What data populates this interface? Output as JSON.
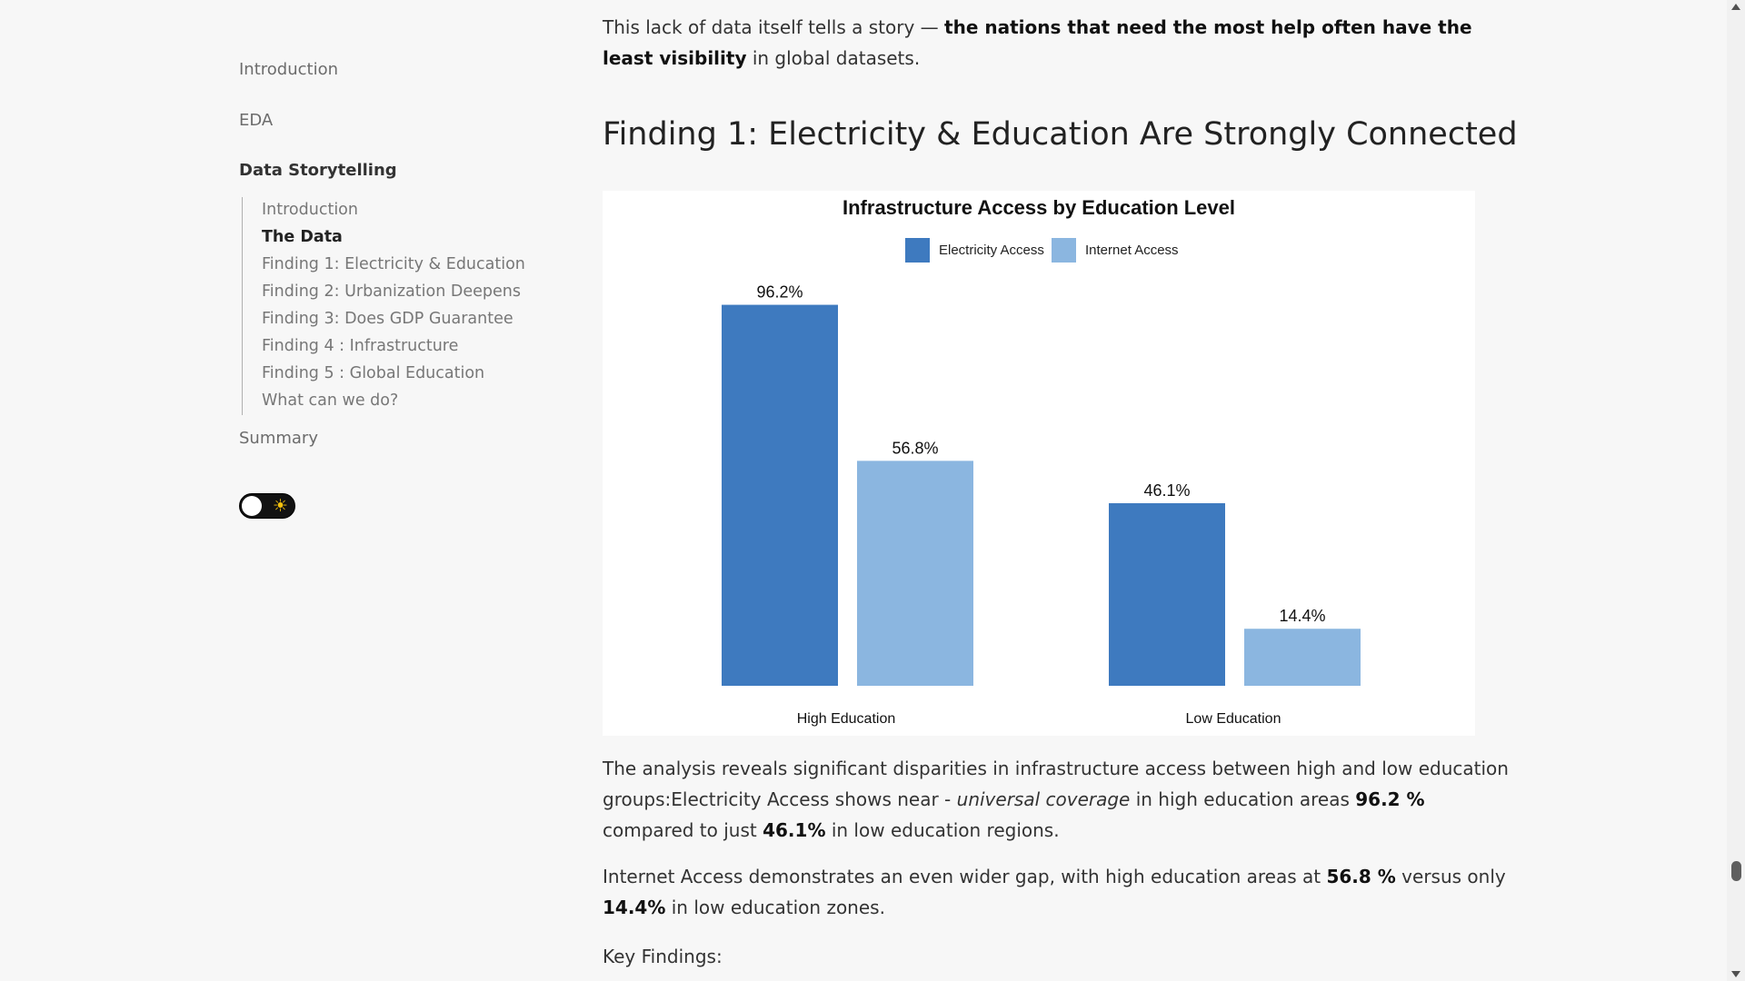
{
  "toc": {
    "items": [
      {
        "label": "Introduction"
      },
      {
        "label": "EDA"
      },
      {
        "label": "Data Storytelling"
      },
      {
        "label": "Summary"
      }
    ],
    "subitems": [
      {
        "label": "Introduction"
      },
      {
        "label": "The Data"
      },
      {
        "label": "Finding 1: Electricity & Education"
      },
      {
        "label": "Finding 2: Urbanization Deepens"
      },
      {
        "label": "Finding 3: Does GDP Guarantee"
      },
      {
        "label": "Finding 4 : Infrastructure"
      },
      {
        "label": "Finding 5 : Global Education"
      },
      {
        "label": "What can we do?"
      }
    ]
  },
  "theme_toggle": {
    "icon": "sun-icon",
    "glyph": "☀"
  },
  "content": {
    "intro_text": "This lack of data itself tells a story — ",
    "intro_bold": "the nations that need the most help often have the least visibility",
    "intro_end": " in global datasets.",
    "heading": "Finding 1: Electricity & Education Are Strongly Connected",
    "p2_a": "The analysis reveals significant disparities in infrastructure access between high and low education groups:Electricity Access shows near - ",
    "p2_em": "universal coverage",
    "p2_b": " in high education areas ",
    "p2_v1": "96.2 %",
    "p2_c": " compared to just ",
    "p2_v2": "46.1%",
    "p2_d": " in low education regions.",
    "p3_a": "Internet Access demonstrates an even wider gap, with high education areas at ",
    "p3_v1": "56.8 %",
    "p3_b": " versus only ",
    "p3_v2": "14.4%",
    "p3_c": " in low education zones.",
    "p4": "Key Findings:"
  },
  "chart_data": {
    "type": "bar",
    "title": "Infrastructure Access by Education Level",
    "categories": [
      "High Education",
      "Low Education"
    ],
    "series": [
      {
        "name": "Electricity Access",
        "values": [
          96.2,
          46.1
        ],
        "labels": [
          "96.2%",
          "46.1%"
        ],
        "color": "#3e7abf"
      },
      {
        "name": "Internet Access",
        "values": [
          56.8,
          14.4
        ],
        "labels": [
          "56.8%",
          "14.4%"
        ],
        "color": "#8bb6e0"
      }
    ],
    "ylim": [
      0,
      100
    ],
    "grid": false,
    "legend": "top-center"
  }
}
